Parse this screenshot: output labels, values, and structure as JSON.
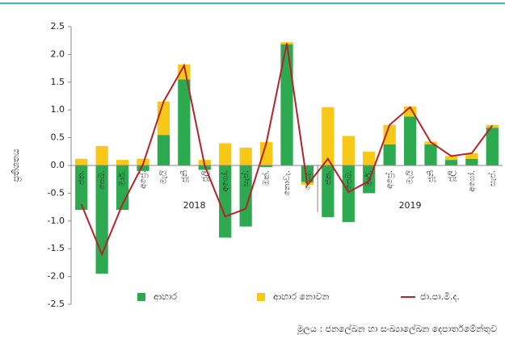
{
  "chart_data": {
    "type": "stacked_bar_line",
    "y_label": "ප්‍රතිශතය",
    "categories": [
      "ජන.",
      "පෙබ.",
      "මාර්.",
      "අප්‍රේ.",
      "මැයි",
      "ජූනි",
      "ජූලි",
      "අගෝ.",
      "සැප්.",
      "ඔක්.",
      "නොවැ.",
      "දෙසැ.",
      "ජන.",
      "පෙබ.",
      "මාර්.",
      "අප්‍රේ.",
      "මැයි",
      "ජූනි",
      "ජූලි",
      "අගෝ.",
      "සැප්."
    ],
    "year_groups": [
      {
        "label": "2018",
        "count": 12
      },
      {
        "label": "2019",
        "count": 9
      }
    ],
    "series": [
      {
        "name": "ආහාර",
        "kind": "bar",
        "color": "#2daa4f",
        "values": [
          -0.8,
          -1.95,
          -0.8,
          -0.1,
          0.55,
          1.55,
          -0.08,
          -1.3,
          -1.1,
          -0.03,
          2.18,
          -0.3,
          -0.93,
          -1.02,
          -0.5,
          0.38,
          0.88,
          0.38,
          0.1,
          0.12,
          0.68
        ]
      },
      {
        "name": "ආහාර නොවන",
        "kind": "bar",
        "color": "#f7c815",
        "values": [
          0.12,
          0.35,
          0.1,
          0.12,
          0.6,
          0.27,
          0.1,
          0.4,
          0.32,
          0.42,
          0.04,
          -0.05,
          1.05,
          0.53,
          0.25,
          0.35,
          0.18,
          0.05,
          0.07,
          0.1,
          0.05
        ]
      },
      {
        "name": "ජා.පා.මි.ද.",
        "kind": "line",
        "color": "#b3232b",
        "values": [
          -0.7,
          -1.6,
          -0.7,
          0.02,
          1.15,
          1.8,
          0.0,
          -0.92,
          -0.78,
          0.4,
          2.2,
          -0.35,
          0.12,
          -0.48,
          -0.28,
          0.73,
          1.05,
          0.42,
          0.17,
          0.22,
          0.72
        ]
      }
    ],
    "ylim": [
      -2.5,
      2.5
    ],
    "yticks": [
      {
        "value": -2.5,
        "label": "-2.5"
      },
      {
        "value": -2,
        "label": "-2.0"
      },
      -1.5,
      {
        "value": -1,
        "label": "-1.0"
      },
      -0.5,
      {
        "value": 0,
        "label": "0.0"
      },
      0.5,
      {
        "value": 1,
        "label": "1.0"
      },
      1.5,
      {
        "value": 2,
        "label": "2.0"
      },
      2.5
    ],
    "source": "මූලය : ජනලේඛන හා සංඛ්‍යාලේඛන දෙපාර්තමේන්තුව"
  }
}
